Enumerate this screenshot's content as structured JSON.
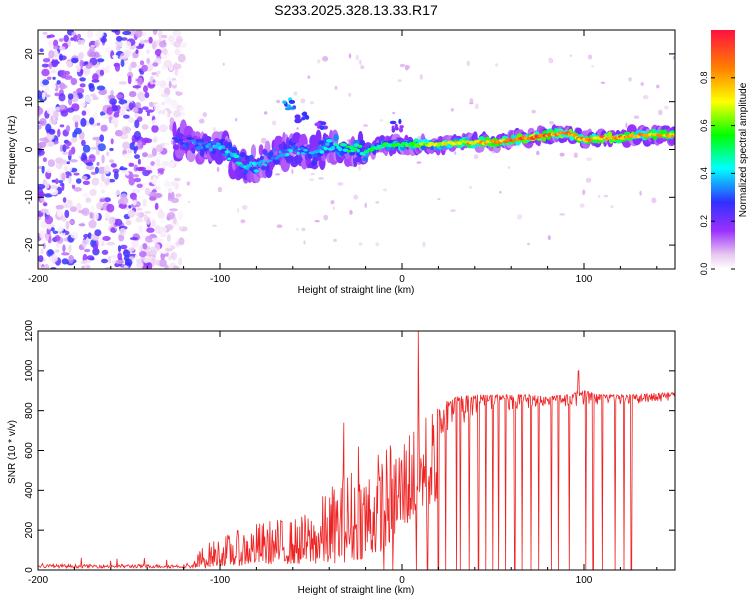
{
  "title": "S233.2025.328.13.33.R17",
  "chart_data": [
    {
      "type": "heatmap",
      "xlabel": "Height of straight line (km)",
      "ylabel": "Frequency (Hz)",
      "xlim": [
        -200,
        150
      ],
      "ylim": [
        -25,
        25
      ],
      "xticks": [
        -200,
        -100,
        0,
        100
      ],
      "yticks": [
        -20,
        -10,
        0,
        10,
        20
      ],
      "colorbar": {
        "label": "Normalized spectral amplitude",
        "range": [
          0,
          1
        ],
        "ticks": [
          0.0,
          0.2,
          0.4,
          0.6,
          0.8
        ],
        "colormap": [
          "#ffffff",
          "#e8c8f0",
          "#9b30ff",
          "#3030ff",
          "#00ffff",
          "#00ff00",
          "#ffff00",
          "#ff8000",
          "#ff0000"
        ]
      },
      "ridge": {
        "description": "narrow high-amplitude frequency track",
        "points": [
          {
            "x": -120,
            "y": 1.5,
            "amp": 0.3
          },
          {
            "x": -110,
            "y": 1.0,
            "amp": 0.35
          },
          {
            "x": -100,
            "y": 0.5,
            "amp": 0.4
          },
          {
            "x": -90,
            "y": -2.5,
            "amp": 0.45
          },
          {
            "x": -80,
            "y": -3.5,
            "amp": 0.4
          },
          {
            "x": -70,
            "y": -1.0,
            "amp": 0.35
          },
          {
            "x": -60,
            "y": 0.0,
            "amp": 0.4
          },
          {
            "x": -50,
            "y": -1.5,
            "amp": 0.35
          },
          {
            "x": -40,
            "y": 1.0,
            "amp": 0.45
          },
          {
            "x": -30,
            "y": 0.5,
            "amp": 0.5
          },
          {
            "x": -20,
            "y": -0.5,
            "amp": 0.5
          },
          {
            "x": -10,
            "y": 1.0,
            "amp": 0.55
          },
          {
            "x": 0,
            "y": 1.0,
            "amp": 0.6
          },
          {
            "x": 10,
            "y": 1.0,
            "amp": 0.65
          },
          {
            "x": 20,
            "y": 1.0,
            "amp": 0.7
          },
          {
            "x": 30,
            "y": 1.5,
            "amp": 0.75
          },
          {
            "x": 40,
            "y": 1.5,
            "amp": 0.8
          },
          {
            "x": 50,
            "y": 1.5,
            "amp": 0.8
          },
          {
            "x": 60,
            "y": 2.0,
            "amp": 0.85
          },
          {
            "x": 70,
            "y": 2.5,
            "amp": 0.95
          },
          {
            "x": 80,
            "y": 3.0,
            "amp": 0.9
          },
          {
            "x": 90,
            "y": 3.5,
            "amp": 0.85
          },
          {
            "x": 100,
            "y": 2.0,
            "amp": 0.8
          },
          {
            "x": 110,
            "y": 2.5,
            "amp": 0.85
          },
          {
            "x": 120,
            "y": 2.5,
            "amp": 0.85
          },
          {
            "x": 130,
            "y": 3.0,
            "amp": 0.8
          },
          {
            "x": 140,
            "y": 3.0,
            "amp": 0.8
          },
          {
            "x": 150,
            "y": 3.0,
            "amp": 0.8
          }
        ]
      },
      "secondary_features": [
        {
          "x": -62,
          "y": 9.5,
          "amp": 0.45
        },
        {
          "x": -55,
          "y": 6.5,
          "amp": 0.3
        },
        {
          "x": -45,
          "y": 5.0,
          "amp": 0.3
        },
        {
          "x": -3,
          "y": 5.0,
          "amp": 0.3
        }
      ],
      "noise_region": {
        "x_from": -200,
        "x_to": -120,
        "y_from": -25,
        "y_to": 25,
        "amp_max": 0.3
      }
    },
    {
      "type": "line",
      "xlabel": "Height of straight line (km)",
      "ylabel": "SNR (10 * v/v)",
      "xlim": [
        -200,
        150
      ],
      "ylim": [
        0,
        1200
      ],
      "xticks": [
        -200,
        -100,
        0,
        100
      ],
      "yticks": [
        0,
        200,
        400,
        600,
        800,
        1000,
        1200
      ],
      "series": [
        {
          "name": "SNR",
          "color": "#ee2222",
          "envelope": [
            {
              "x": -200,
              "low": 0,
              "high": 40
            },
            {
              "x": -150,
              "low": 0,
              "high": 40
            },
            {
              "x": -115,
              "low": 0,
              "high": 40
            },
            {
              "x": -110,
              "low": 10,
              "high": 120
            },
            {
              "x": -100,
              "low": 20,
              "high": 170
            },
            {
              "x": -90,
              "low": 20,
              "high": 200
            },
            {
              "x": -80,
              "low": 30,
              "high": 240
            },
            {
              "x": -70,
              "low": 30,
              "high": 260
            },
            {
              "x": -60,
              "low": 30,
              "high": 260
            },
            {
              "x": -50,
              "low": 30,
              "high": 300
            },
            {
              "x": -40,
              "low": 30,
              "high": 420
            },
            {
              "x": -30,
              "low": 40,
              "high": 520
            },
            {
              "x": -20,
              "low": 60,
              "high": 560
            },
            {
              "x": -10,
              "low": 100,
              "high": 620
            },
            {
              "x": 0,
              "low": 200,
              "high": 700
            },
            {
              "x": 10,
              "low": 300,
              "high": 800
            },
            {
              "x": 20,
              "low": 350,
              "high": 830
            },
            {
              "x": 30,
              "low": 500,
              "high": 870
            },
            {
              "x": 40,
              "low": 600,
              "high": 880
            },
            {
              "x": 50,
              "low": 650,
              "high": 880
            },
            {
              "x": 60,
              "low": 700,
              "high": 880
            },
            {
              "x": 70,
              "low": 720,
              "high": 880
            },
            {
              "x": 80,
              "low": 740,
              "high": 870
            },
            {
              "x": 90,
              "low": 740,
              "high": 880
            },
            {
              "x": 100,
              "low": 740,
              "high": 900
            },
            {
              "x": 110,
              "low": 760,
              "high": 880
            },
            {
              "x": 120,
              "low": 760,
              "high": 880
            },
            {
              "x": 130,
              "low": 760,
              "high": 880
            },
            {
              "x": 140,
              "low": 760,
              "high": 890
            },
            {
              "x": 150,
              "low": 760,
              "high": 890
            }
          ],
          "spikes": [
            {
              "x": 9,
              "y": 1200
            },
            {
              "x": -32,
              "y": 740
            },
            {
              "x": 97,
              "y": 1000
            },
            {
              "x": -24,
              "y": 620
            }
          ],
          "dropouts_x": [
            -10,
            -5,
            8,
            14,
            20,
            24,
            30,
            32,
            37,
            42,
            46,
            50,
            53,
            57,
            62,
            66,
            71,
            75,
            82,
            86,
            92,
            101,
            105,
            110,
            117,
            122,
            126
          ]
        }
      ]
    }
  ]
}
